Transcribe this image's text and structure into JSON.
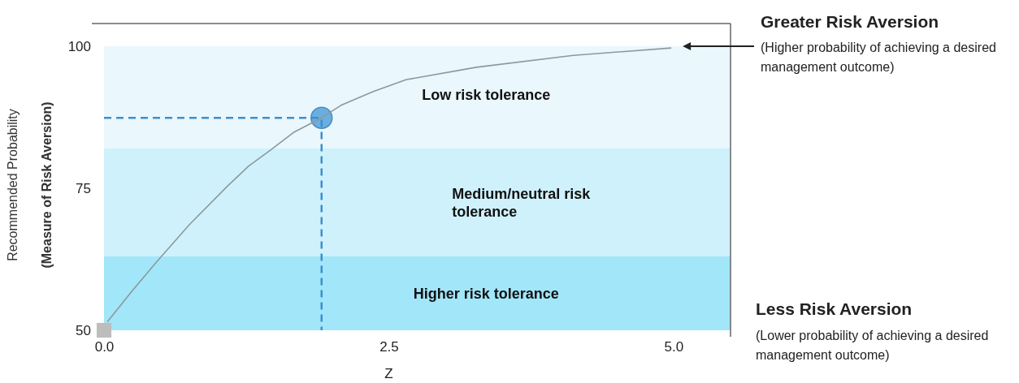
{
  "chart_data": {
    "type": "line",
    "xlabel": "Z",
    "ylabel": "Recommended Probability\n(Measure of Risk Aversion)",
    "xlim": [
      0,
      5.5
    ],
    "ylim": [
      50,
      104
    ],
    "xticks": [
      {
        "value": 0,
        "label": "0.0"
      },
      {
        "value": 2.5,
        "label": "2.5"
      },
      {
        "value": 5,
        "label": "5.0"
      }
    ],
    "yticks": [
      50,
      75,
      100
    ],
    "grid": false,
    "series": [
      {
        "color": "#8a9a9c",
        "line_style": "solid",
        "marker": "none",
        "x": [
          0.03,
          0.25,
          0.46,
          0.75,
          1.08,
          1.27,
          1.46,
          1.67,
          1.91,
          2.08,
          2.36,
          2.65,
          3.27,
          4.12,
          4.98
        ],
        "values": [
          51.5,
          57,
          62,
          68.6,
          75.3,
          78.9,
          81.7,
          84.9,
          87.4,
          89.6,
          92,
          94.1,
          96.3,
          98.4,
          99.7
        ]
      },
      {
        "color": "#3d8fcf",
        "line_style": "dashed",
        "marker": "none",
        "x": [
          0,
          1.91,
          1.91
        ],
        "values": [
          87.4,
          87.4,
          50
        ]
      },
      {
        "type": "scatter",
        "color": "#6aaee0",
        "marker": "circle",
        "x": [
          1.91
        ],
        "values": [
          87.4
        ]
      },
      {
        "type": "scatter",
        "color": "#bdbdbd",
        "marker": "square",
        "x": [
          0
        ],
        "values": [
          50
        ]
      }
    ],
    "bands": [
      {
        "axis": "y",
        "from": 82,
        "to": 100,
        "label": "Low risk tolerance",
        "color": "#eaf7fc"
      },
      {
        "axis": "y",
        "from": 63,
        "to": 82,
        "label": "Medium/neutral risk tolerance",
        "color": "#cff1fb"
      },
      {
        "axis": "y",
        "from": 50,
        "to": 63,
        "label": "Higher risk tolerance",
        "color": "#a2e6f9"
      }
    ],
    "annotations": [
      {
        "text": "Greater Risk Aversion",
        "x": 5.08,
        "y": 100
      },
      "(Higher probability of achieving a desired management outcome)",
      "Less Risk Aversion",
      "(Lower probability of achieving a desired management outcome)"
    ]
  }
}
